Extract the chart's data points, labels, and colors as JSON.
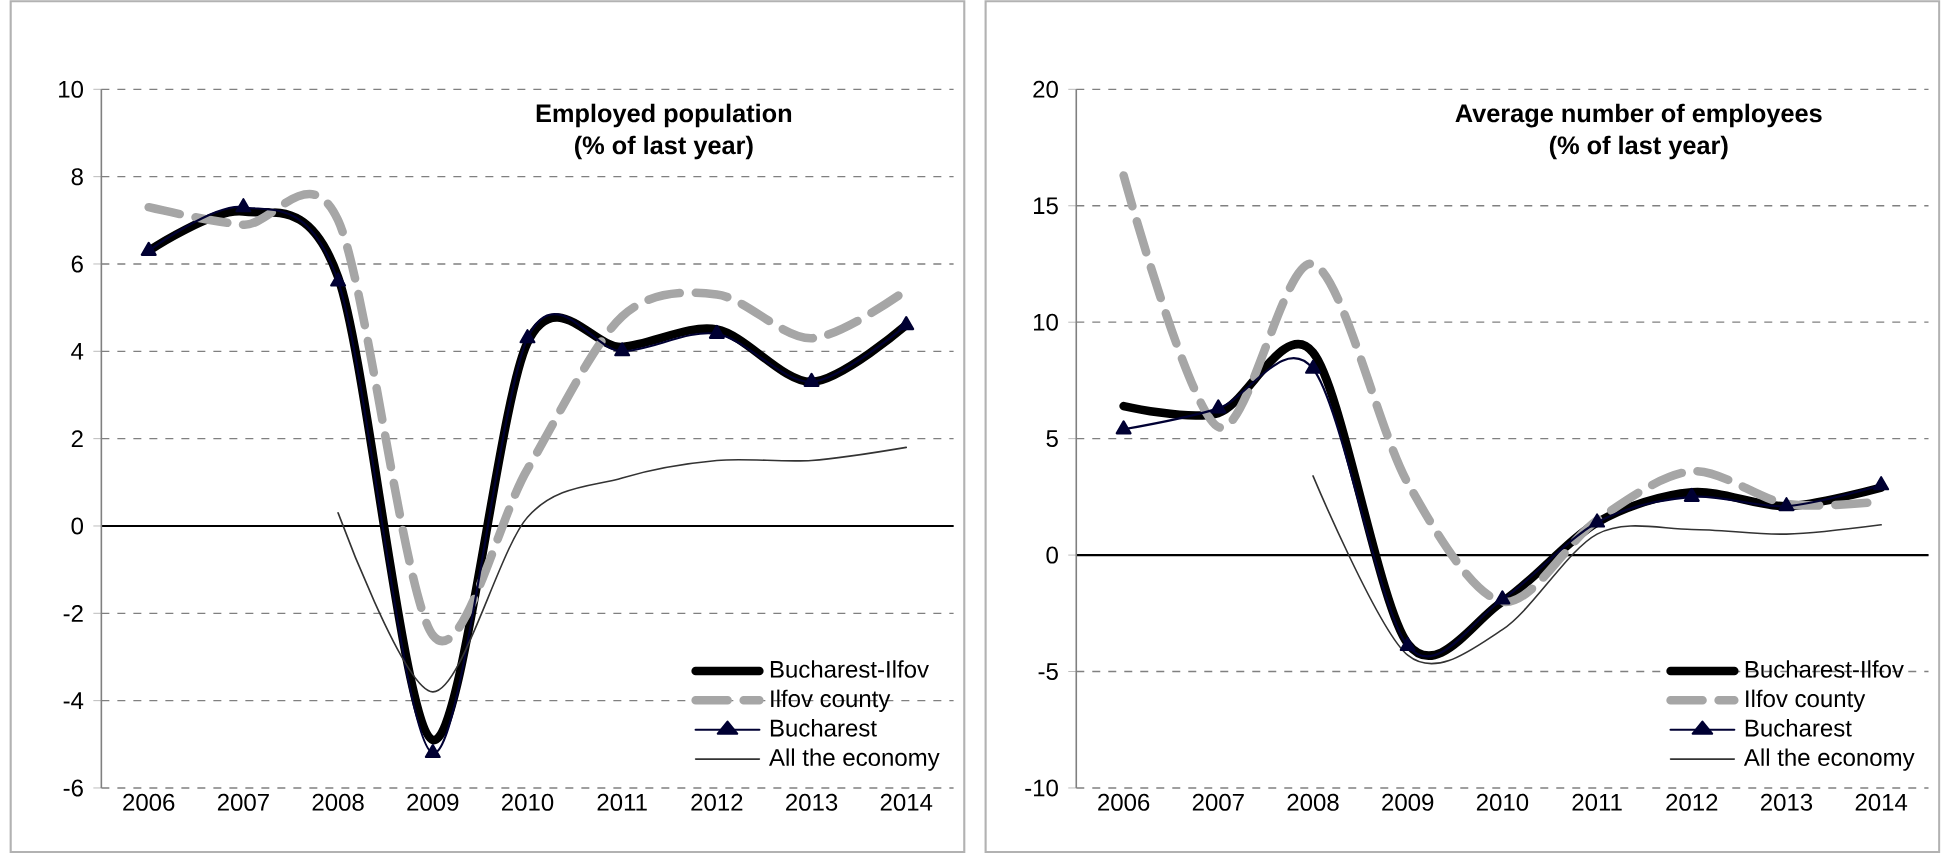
{
  "chart_data": [
    {
      "type": "line",
      "title": "Employed population",
      "subtitle": "(% of last year)",
      "categories": [
        "2006",
        "2007",
        "2008",
        "2009",
        "2010",
        "2011",
        "2012",
        "2013",
        "2014"
      ],
      "ylim": [
        -6,
        10
      ],
      "yticks": [
        -6,
        -4,
        -2,
        0,
        2,
        4,
        6,
        8,
        10
      ],
      "grid": "y",
      "legend": "bottom right",
      "series": [
        {
          "name": "Bucharest-Ilfov",
          "color": "#000000",
          "line_style": "solid",
          "marker": "none",
          "values": [
            6.3,
            7.2,
            5.7,
            -4.9,
            4.2,
            4.1,
            4.5,
            3.3,
            4.6
          ]
        },
        {
          "name": "Ilfov county",
          "color": "#a6a6a6",
          "line_style": "dashed",
          "marker": "none",
          "values": [
            7.3,
            6.9,
            7.0,
            -2.5,
            1.3,
            4.8,
            5.3,
            4.3,
            5.4
          ]
        },
        {
          "name": "Bucharest",
          "color": "#000033",
          "line_style": "solid",
          "marker": "triangle",
          "values": [
            6.3,
            7.3,
            5.6,
            -5.2,
            4.3,
            4.0,
            4.4,
            3.3,
            4.6
          ]
        },
        {
          "name": "All the economy",
          "color": "#333333",
          "line_style": "solid",
          "marker": "none",
          "values": [
            null,
            null,
            0.3,
            -3.8,
            0.2,
            1.1,
            1.5,
            1.5,
            1.8
          ]
        }
      ]
    },
    {
      "type": "line",
      "title": "Average number of employees",
      "subtitle": "(% of last year)",
      "categories": [
        "2006",
        "2007",
        "2008",
        "2009",
        "2010",
        "2011",
        "2012",
        "2013",
        "2014"
      ],
      "ylim": [
        -10,
        20
      ],
      "yticks": [
        -10,
        -5,
        0,
        5,
        10,
        15,
        20
      ],
      "grid": "y",
      "legend": "bottom right",
      "series": [
        {
          "name": "Bucharest-Ilfov",
          "color": "#000000",
          "line_style": "solid",
          "marker": "none",
          "values": [
            6.4,
            6.1,
            8.7,
            -3.8,
            -2.0,
            1.4,
            2.7,
            2.1,
            2.9
          ]
        },
        {
          "name": "Ilfov county",
          "color": "#a6a6a6",
          "line_style": "dashed",
          "marker": "none",
          "values": [
            16.3,
            5.5,
            12.5,
            3.1,
            -2.0,
            1.5,
            3.6,
            2.2,
            2.3
          ]
        },
        {
          "name": "Bucharest",
          "color": "#000033",
          "line_style": "solid",
          "marker": "triangle",
          "values": [
            5.4,
            6.3,
            8.0,
            -3.9,
            -1.9,
            1.4,
            2.5,
            2.1,
            3.0
          ]
        },
        {
          "name": "All the economy",
          "color": "#333333",
          "line_style": "solid",
          "marker": "none",
          "values": [
            null,
            null,
            3.4,
            -4.3,
            -3.2,
            0.9,
            1.1,
            0.9,
            1.3
          ]
        }
      ]
    }
  ]
}
